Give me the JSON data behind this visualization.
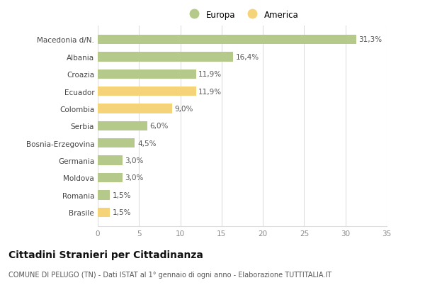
{
  "categories": [
    "Macedonia d/N.",
    "Albania",
    "Croazia",
    "Ecuador",
    "Colombia",
    "Serbia",
    "Bosnia-Erzegovina",
    "Germania",
    "Moldova",
    "Romania",
    "Brasile"
  ],
  "values": [
    31.3,
    16.4,
    11.9,
    11.9,
    9.0,
    6.0,
    4.5,
    3.0,
    3.0,
    1.5,
    1.5
  ],
  "labels": [
    "31,3%",
    "16,4%",
    "11,9%",
    "11,9%",
    "9,0%",
    "6,0%",
    "4,5%",
    "3,0%",
    "3,0%",
    "1,5%",
    "1,5%"
  ],
  "colors": [
    "#b5c98a",
    "#b5c98a",
    "#b5c98a",
    "#f5d479",
    "#f5d479",
    "#b5c98a",
    "#b5c98a",
    "#b5c98a",
    "#b5c98a",
    "#b5c98a",
    "#f5d479"
  ],
  "europa_color": "#b5c98a",
  "america_color": "#f5d479",
  "legend_europa": "Europa",
  "legend_america": "America",
  "xlim": [
    0,
    35
  ],
  "xticks": [
    0,
    5,
    10,
    15,
    20,
    25,
    30,
    35
  ],
  "title": "Cittadini Stranieri per Cittadinanza",
  "subtitle": "COMUNE DI PELUGO (TN) - Dati ISTAT al 1° gennaio di ogni anno - Elaborazione TUTTITALIA.IT",
  "background_color": "#ffffff",
  "grid_color": "#dddddd",
  "bar_height": 0.55,
  "title_fontsize": 10,
  "subtitle_fontsize": 7,
  "label_fontsize": 7.5,
  "tick_fontsize": 7.5,
  "legend_fontsize": 8.5
}
